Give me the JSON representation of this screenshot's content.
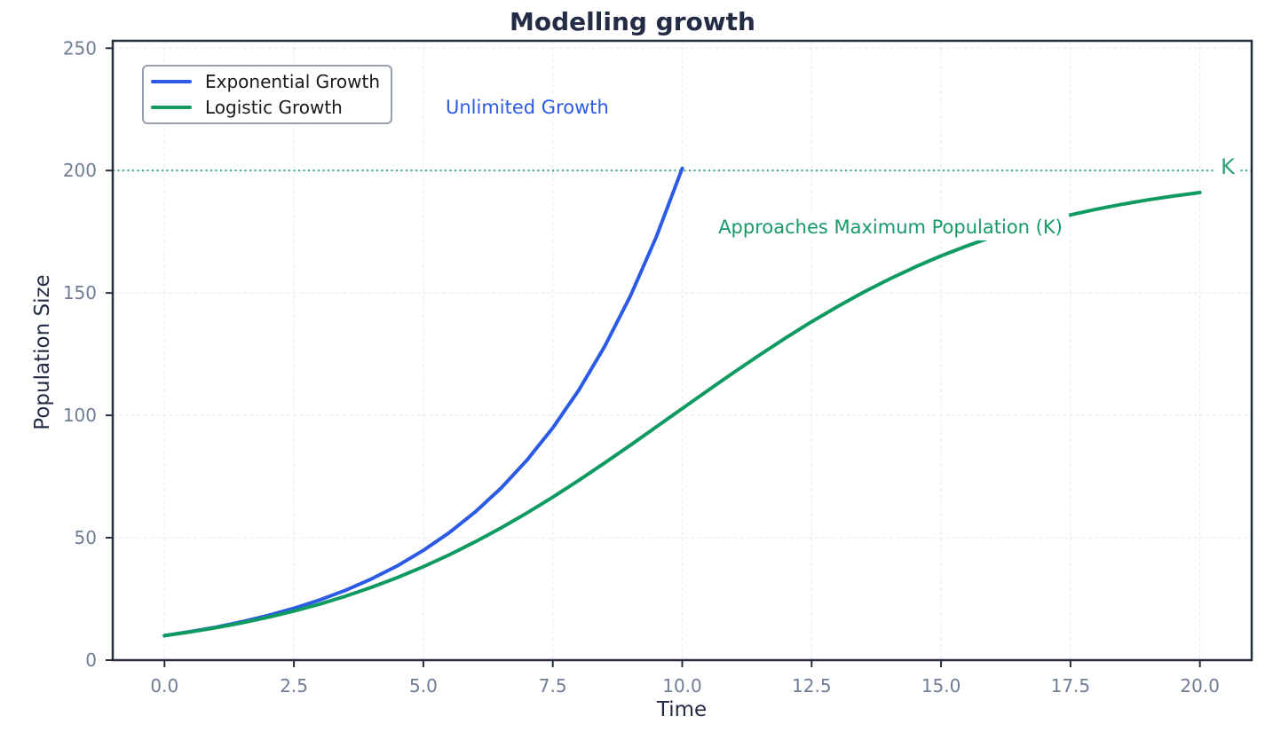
{
  "chart_data": {
    "type": "line",
    "title": "Modelling growth",
    "xlabel": "Time",
    "ylabel": "Population Size",
    "xlim": [
      -1,
      21
    ],
    "ylim": [
      0,
      253
    ],
    "grid": true,
    "legend_position": "upper-left",
    "x_ticks": [
      0,
      2.5,
      5,
      7.5,
      10,
      12.5,
      15,
      17.5,
      20
    ],
    "x_tick_labels": [
      "0.0",
      "2.5",
      "5.0",
      "7.5",
      "10.0",
      "12.5",
      "15.0",
      "17.5",
      "20.0"
    ],
    "y_ticks": [
      0,
      50,
      100,
      150,
      200,
      250
    ],
    "y_tick_labels": [
      "0",
      "50",
      "100",
      "150",
      "200",
      "250"
    ],
    "series": [
      {
        "id": "exponential",
        "name": "Exponential Growth",
        "color": "#2b5ae4",
        "x": [
          0,
          0.5,
          1,
          1.5,
          2,
          2.5,
          3,
          3.5,
          4,
          4.5,
          5,
          5.5,
          6,
          6.5,
          7,
          7.5,
          8,
          8.5,
          9,
          9.5,
          10
        ],
        "values": [
          10,
          11.62,
          13.5,
          15.68,
          18.22,
          21.17,
          24.6,
          28.58,
          33.2,
          38.57,
          44.82,
          52.07,
          60.5,
          70.29,
          81.66,
          94.88,
          110.23,
          128.07,
          148.8,
          172.88,
          200.86
        ]
      },
      {
        "id": "logistic",
        "name": "Logistic Growth",
        "color": "#0f9a62",
        "x": [
          0,
          0.5,
          1,
          1.5,
          2,
          2.5,
          3,
          3.5,
          4,
          4.5,
          5,
          5.5,
          6,
          6.5,
          7,
          7.5,
          8,
          8.5,
          9,
          9.5,
          10,
          10.5,
          11,
          11.5,
          12,
          12.5,
          13,
          13.5,
          14,
          14.5,
          15,
          15.5,
          16,
          16.5,
          17,
          17.5,
          18,
          18.5,
          19,
          19.5,
          20
        ],
        "values": [
          10,
          11.53,
          13.27,
          15.25,
          17.5,
          20.05,
          22.92,
          26.15,
          29.75,
          33.76,
          38.18,
          43.02,
          48.3,
          54.01,
          60.11,
          66.6,
          73.43,
          80.53,
          87.83,
          95.28,
          102.77,
          110.22,
          117.58,
          124.74,
          131.64,
          138.23,
          144.44,
          150.26,
          155.64,
          160.61,
          165.14,
          169.25,
          172.97,
          176.27,
          179.24,
          181.87,
          184.2,
          186.24,
          188.04,
          189.62,
          191.01
        ]
      }
    ],
    "k_line": {
      "y": 200,
      "label": "K",
      "color": "#2aa173"
    },
    "annotations": [
      {
        "text": "Unlimited Growth",
        "color": "#2b5ae4",
        "x": 7.1,
        "y": 226
      },
      {
        "text": "Approaches Maximum Population (K)",
        "color": "#169a66",
        "x": 14.0,
        "y": 177
      }
    ],
    "style": {
      "spine_color": "#262e3d",
      "tick_label_color": "#6f7d96",
      "grid_color": "#e7efed",
      "title_color": "#232c44",
      "background": "#ffffff"
    }
  }
}
